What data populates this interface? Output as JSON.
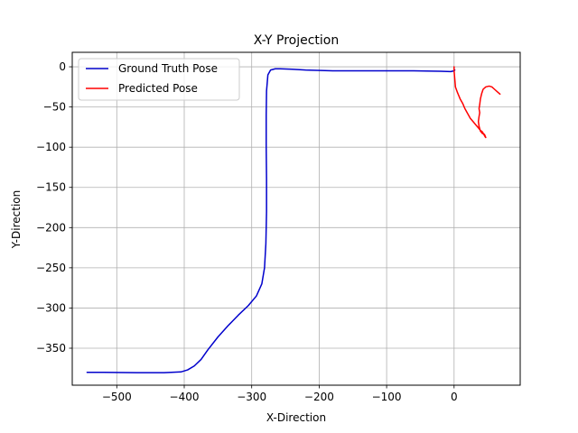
{
  "chart_data": {
    "type": "line",
    "title": "X-Y Projection",
    "xlabel": "X-Direction",
    "ylabel": "Y-Direction",
    "xlim": [
      -566,
      98
    ],
    "ylim": [
      -396,
      18
    ],
    "xticks": [
      -500,
      -400,
      -300,
      -200,
      -100,
      0
    ],
    "xtick_labels": [
      "−500",
      "−400",
      "−300",
      "−200",
      "−100",
      "0"
    ],
    "yticks": [
      0,
      -50,
      -100,
      -150,
      -200,
      -250,
      -300,
      -350
    ],
    "ytick_labels": [
      "0",
      "−50",
      "−100",
      "−150",
      "−200",
      "−250",
      "−300",
      "−350"
    ],
    "grid": true,
    "legend_position": "top-left",
    "series": [
      {
        "name": "Ground Truth Pose",
        "color": "#0000cc",
        "points": [
          [
            -544,
            -380
          ],
          [
            -520,
            -380
          ],
          [
            -470,
            -380.5
          ],
          [
            -430,
            -380.5
          ],
          [
            -405,
            -379.5
          ],
          [
            -395,
            -377
          ],
          [
            -385,
            -372
          ],
          [
            -375,
            -364
          ],
          [
            -365,
            -352
          ],
          [
            -350,
            -336
          ],
          [
            -335,
            -322
          ],
          [
            -320,
            -309
          ],
          [
            -305,
            -297
          ],
          [
            -293,
            -285
          ],
          [
            -285,
            -270
          ],
          [
            -281,
            -250
          ],
          [
            -279,
            -220
          ],
          [
            -278,
            -180
          ],
          [
            -278,
            -140
          ],
          [
            -278.5,
            -100
          ],
          [
            -278.5,
            -60
          ],
          [
            -278,
            -30
          ],
          [
            -276,
            -10
          ],
          [
            -272,
            -4
          ],
          [
            -265,
            -2.5
          ],
          [
            -258,
            -2.5
          ],
          [
            -240,
            -3
          ],
          [
            -220,
            -4
          ],
          [
            -180,
            -5
          ],
          [
            -120,
            -5
          ],
          [
            -60,
            -5
          ],
          [
            -20,
            -5.5
          ],
          [
            -5,
            -6
          ],
          [
            0,
            -5
          ],
          [
            1,
            -4
          ]
        ]
      },
      {
        "name": "Predicted Pose",
        "color": "#ff0000",
        "points": [
          [
            0,
            0
          ],
          [
            0,
            -5
          ],
          [
            1,
            -15
          ],
          [
            2,
            -25
          ],
          [
            5,
            -32
          ],
          [
            9,
            -40
          ],
          [
            13,
            -46
          ],
          [
            16,
            -52
          ],
          [
            20,
            -58
          ],
          [
            24,
            -64
          ],
          [
            28,
            -68
          ],
          [
            32,
            -72
          ],
          [
            36,
            -76
          ],
          [
            39,
            -79
          ],
          [
            42,
            -81
          ],
          [
            44,
            -84
          ],
          [
            46,
            -87
          ],
          [
            47,
            -88
          ],
          [
            46,
            -86
          ],
          [
            45,
            -84
          ],
          [
            42,
            -83
          ],
          [
            39,
            -80
          ],
          [
            37,
            -74
          ],
          [
            36,
            -68
          ],
          [
            37,
            -62
          ],
          [
            38,
            -57
          ],
          [
            37,
            -52
          ],
          [
            38,
            -47
          ],
          [
            39,
            -40
          ],
          [
            41,
            -33
          ],
          [
            43,
            -28
          ],
          [
            47,
            -25
          ],
          [
            52,
            -24
          ],
          [
            56,
            -25
          ],
          [
            60,
            -28
          ],
          [
            64,
            -31
          ],
          [
            68,
            -34
          ]
        ]
      }
    ]
  }
}
